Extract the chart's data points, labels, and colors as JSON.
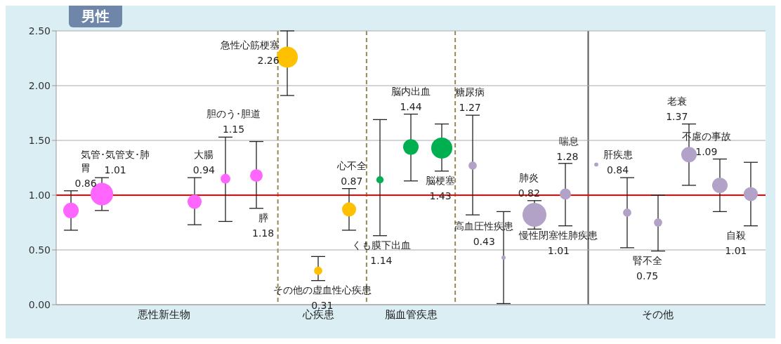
{
  "chart_data": {
    "type": "bubble",
    "title": "男性",
    "categories": [
      null,
      null,
      null,
      "悪性新生物",
      null,
      null,
      null,
      null,
      "心疾患",
      null,
      null,
      "脳血管疾患",
      null,
      null,
      null,
      null,
      null,
      null,
      null,
      "その他",
      null,
      null,
      null
    ],
    "values": [
      0.86,
      1.01,
      null,
      null,
      0.94,
      1.15,
      1.18,
      2.26,
      0.31,
      0.87,
      1.14,
      1.44,
      1.43,
      1.27,
      0.43,
      0.82,
      1.01,
      1.28,
      0.84,
      0.75,
      1.37,
      1.09,
      1.01
    ],
    "sizes": [
      0.42,
      0.89,
      null,
      null,
      0.35,
      0.17,
      0.28,
      0.78,
      0.12,
      0.35,
      0.09,
      0.42,
      0.78,
      0.12,
      0.03,
      1,
      0.22,
      0.03,
      0.12,
      0.12,
      0.42,
      0.42,
      0.35
    ],
    "errors": [
      [
        0.68,
        1.04
      ],
      [
        0.86,
        1.16
      ],
      null,
      null,
      [
        0.73,
        1.16
      ],
      [
        0.76,
        1.53
      ],
      [
        0.88,
        1.49
      ],
      [
        1.91,
        2.5
      ],
      [
        0.22,
        0.44
      ],
      [
        0.68,
        1.06
      ],
      [
        0.63,
        1.69
      ],
      [
        1.13,
        1.74
      ],
      [
        1.22,
        1.65
      ],
      [
        0.82,
        1.73
      ],
      [
        0.01,
        0.85
      ],
      0.13,
      [
        0.72,
        1.29
      ],
      null,
      [
        0.52,
        1.16
      ],
      [
        0.49,
        1
      ],
      [
        1.09,
        1.65
      ],
      [
        0.85,
        1.33
      ],
      [
        0.72,
        1.3
      ]
    ],
    "colors": [
      "#ff66ff",
      "#ff66ff",
      null,
      null,
      "#ff66ff",
      "#ff66ff",
      "#ff66ff",
      "#ffc000",
      "#ffc000",
      "#ffc000",
      "#00b050",
      "#00b050",
      "#00b050",
      "#b3a2c7",
      "#b3a2c7",
      "#b3a2c7",
      "#b3a2c7",
      "#b3a2c7",
      "#b3a2c7",
      "#b3a2c7",
      "#b3a2c7",
      "#b3a2c7",
      "#b3a2c7"
    ],
    "annotations": [
      "胃\n0.86",
      "気管･気管支･肺\n1.01",
      "大腸\n0.94",
      "胆のう･胆道\n1.15",
      "膵\n1.18",
      "急性心筋梗塞\n2.26",
      "その他の虚血性心疾患\n0.31",
      "心不全\n0.87",
      "くも膜下出血\n1.14",
      "脳内出血\n1.44",
      "脳梗塞\n1.43",
      "糖尿病\n1.27",
      "高血圧性疾患\n0.43",
      "肺炎\n0.82",
      "慢性閉塞性肺疾患\n1.01",
      "喘息\n1.28",
      "肝疾患\n0.84",
      "腎不全\n0.75",
      "老衰\n1.37",
      "不慮の事故\n1.09",
      "自殺\n1.01"
    ],
    "ref_lines": [
      {
        "axis": "y",
        "value": 1,
        "color": "#ff0000",
        "line_style": "solid"
      }
    ],
    "ylim": [
      0,
      2.5
    ],
    "yticks": [
      {
        "value": 0,
        "label": "0.00"
      },
      {
        "value": 0.5,
        "label": "0.50"
      },
      {
        "value": 1,
        "label": "1.00"
      },
      {
        "value": 1.5,
        "label": "1.50"
      },
      {
        "value": 2,
        "label": "2.00"
      },
      {
        "value": 2.5,
        "label": "2.50"
      }
    ],
    "grid": "y",
    "legend": false
  }
}
